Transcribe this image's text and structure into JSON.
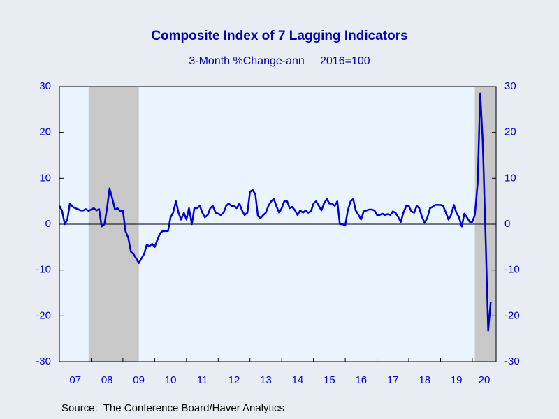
{
  "chart_data": {
    "type": "line",
    "title": "Composite Index of 7 Lagging Indicators",
    "subtitle": "3-Month %Change-ann     2016=100",
    "source": "Source:  The Conference Board/Haver Analytics",
    "x": [
      2007,
      2007.08,
      2007.17,
      2007.25,
      2007.33,
      2007.42,
      2007.5,
      2007.58,
      2007.67,
      2007.75,
      2007.83,
      2007.92,
      2008,
      2008.08,
      2008.17,
      2008.25,
      2008.33,
      2008.42,
      2008.5,
      2008.58,
      2008.67,
      2008.75,
      2008.83,
      2008.92,
      2009,
      2009.08,
      2009.17,
      2009.25,
      2009.33,
      2009.42,
      2009.5,
      2009.58,
      2009.67,
      2009.75,
      2009.83,
      2009.92,
      2010,
      2010.08,
      2010.17,
      2010.25,
      2010.33,
      2010.42,
      2010.5,
      2010.58,
      2010.67,
      2010.75,
      2010.83,
      2010.92,
      2011,
      2011.08,
      2011.17,
      2011.25,
      2011.33,
      2011.42,
      2011.5,
      2011.58,
      2011.67,
      2011.75,
      2011.83,
      2011.92,
      2012,
      2012.08,
      2012.17,
      2012.25,
      2012.33,
      2012.42,
      2012.5,
      2012.58,
      2012.67,
      2012.75,
      2012.83,
      2012.92,
      2013,
      2013.08,
      2013.17,
      2013.25,
      2013.33,
      2013.42,
      2013.5,
      2013.58,
      2013.67,
      2013.75,
      2013.83,
      2013.92,
      2014,
      2014.08,
      2014.17,
      2014.25,
      2014.33,
      2014.42,
      2014.5,
      2014.58,
      2014.67,
      2014.75,
      2014.83,
      2014.92,
      2015,
      2015.08,
      2015.17,
      2015.25,
      2015.33,
      2015.42,
      2015.5,
      2015.58,
      2015.67,
      2015.75,
      2015.83,
      2015.92,
      2016,
      2016.08,
      2016.17,
      2016.25,
      2016.33,
      2016.42,
      2016.5,
      2016.58,
      2016.67,
      2016.75,
      2016.83,
      2016.92,
      2017,
      2017.08,
      2017.17,
      2017.25,
      2017.33,
      2017.42,
      2017.5,
      2017.58,
      2017.67,
      2017.75,
      2017.83,
      2017.92,
      2018,
      2018.08,
      2018.17,
      2018.25,
      2018.33,
      2018.42,
      2018.5,
      2018.58,
      2018.67,
      2018.75,
      2018.83,
      2018.92,
      2019,
      2019.08,
      2019.17,
      2019.25,
      2019.33,
      2019.42,
      2019.5,
      2019.58,
      2019.67,
      2019.75,
      2019.83,
      2019.92,
      2020,
      2020.08,
      2020.17,
      2020.25,
      2020.33,
      2020.42,
      2020.5,
      2020.58
    ],
    "series": [
      {
        "name": "Composite Index of 7 Lagging Indicators",
        "color": "#0000cc",
        "values": [
          4,
          3,
          0,
          1,
          4.5,
          3.8,
          3.5,
          3.3,
          3,
          3,
          3.3,
          2.9,
          3.2,
          3.5,
          3,
          3.3,
          -0.5,
          0,
          3.5,
          7.8,
          5.5,
          3.2,
          3.5,
          2.8,
          3,
          -1.5,
          -3,
          -6,
          -6.5,
          -7.5,
          -8.5,
          -7.5,
          -6.5,
          -4.5,
          -4.8,
          -4.3,
          -5,
          -3.5,
          -2,
          -1.5,
          -1.5,
          -1.5,
          1.5,
          2.5,
          5,
          2.5,
          1,
          2.5,
          1,
          3.5,
          0,
          3.5,
          3.5,
          4,
          2.5,
          1.5,
          2,
          3.5,
          4,
          2.5,
          2.3,
          2,
          2.5,
          4,
          4.5,
          4,
          4,
          3.5,
          4.5,
          3,
          2,
          2.5,
          7,
          7.5,
          6.5,
          1.8,
          1.3,
          2,
          2.5,
          4,
          5,
          5.5,
          4,
          2.5,
          3.5,
          5,
          5,
          3.5,
          3.8,
          3,
          2,
          3,
          2.5,
          3,
          2.5,
          2.8,
          4.5,
          5,
          4,
          3,
          4.5,
          5.5,
          4.5,
          4.5,
          4,
          5,
          0,
          0,
          -0.3,
          3,
          5,
          5.5,
          3,
          2,
          1,
          2.8,
          3,
          3.2,
          3.2,
          3,
          2,
          2,
          2.3,
          2,
          2.2,
          2,
          2.8,
          2.5,
          1.5,
          0.5,
          2.5,
          4,
          4,
          2.8,
          2.5,
          4,
          3.5,
          1.5,
          0.3,
          1.3,
          3.5,
          3.8,
          4.2,
          4.2,
          4.2,
          4,
          2.5,
          1,
          2,
          4.2,
          2.5,
          1.5,
          -0.5,
          2.3,
          1.5,
          0.5,
          0.5,
          2,
          9,
          28.5,
          18,
          -3,
          -23.2,
          -17
        ]
      }
    ],
    "recessions": [
      [
        2007.92,
        2009.5
      ],
      [
        2020.08,
        2020.75
      ]
    ],
    "xlim": [
      2007,
      2020.75
    ],
    "xticks": [
      {
        "value": 2007,
        "label": "07"
      },
      {
        "value": 2008,
        "label": "08"
      },
      {
        "value": 2009,
        "label": "09"
      },
      {
        "value": 2010,
        "label": "10"
      },
      {
        "value": 2011,
        "label": "11"
      },
      {
        "value": 2012,
        "label": "12"
      },
      {
        "value": 2013,
        "label": "13"
      },
      {
        "value": 2014,
        "label": "14"
      },
      {
        "value": 2015,
        "label": "15"
      },
      {
        "value": 2016,
        "label": "16"
      },
      {
        "value": 2017,
        "label": "17"
      },
      {
        "value": 2018,
        "label": "18"
      },
      {
        "value": 2019,
        "label": "19"
      },
      {
        "value": 2020,
        "label": "20"
      }
    ],
    "ylim": [
      -30,
      30
    ],
    "yticks": [
      -30,
      -20,
      -10,
      0,
      10,
      20,
      30
    ],
    "y2lim": [
      -30,
      30
    ],
    "y2ticks": [
      -30,
      -20,
      -10,
      0,
      10,
      20,
      30
    ]
  }
}
